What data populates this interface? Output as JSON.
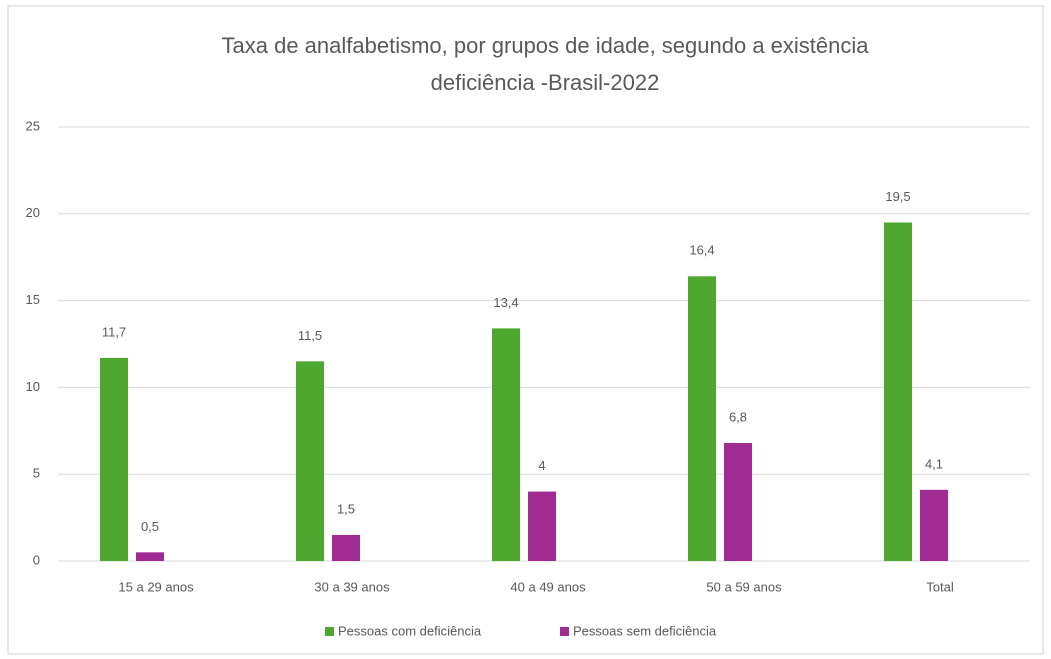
{
  "chart_data": {
    "type": "bar",
    "title": [
      "Taxa de analfabetismo, por grupos de idade, segundo a existência",
      "deficiência -Brasil-2022"
    ],
    "categories": [
      "15 a 29 anos",
      "30 a 39 anos",
      "40 a 49 anos",
      "50 a 59 anos",
      "Total"
    ],
    "series": [
      {
        "name": "Pessoas com deficiência",
        "color": "#4ea72e",
        "values": [
          11.7,
          11.5,
          13.4,
          16.4,
          19.5
        ],
        "value_labels": [
          "11,7",
          "11,5",
          "13,4",
          "16,4",
          "19,5"
        ]
      },
      {
        "name": "Pessoas sem deficiência",
        "color": "#a02b93",
        "values": [
          0.5,
          1.5,
          4,
          6.8,
          4.1
        ],
        "value_labels": [
          "0,5",
          "1,5",
          "4",
          "6,8",
          "4,1"
        ]
      }
    ],
    "ylim": [
      0,
      25
    ],
    "yticks": [
      0,
      5,
      10,
      15,
      20,
      25
    ],
    "grid": true,
    "legend": "bottom"
  }
}
